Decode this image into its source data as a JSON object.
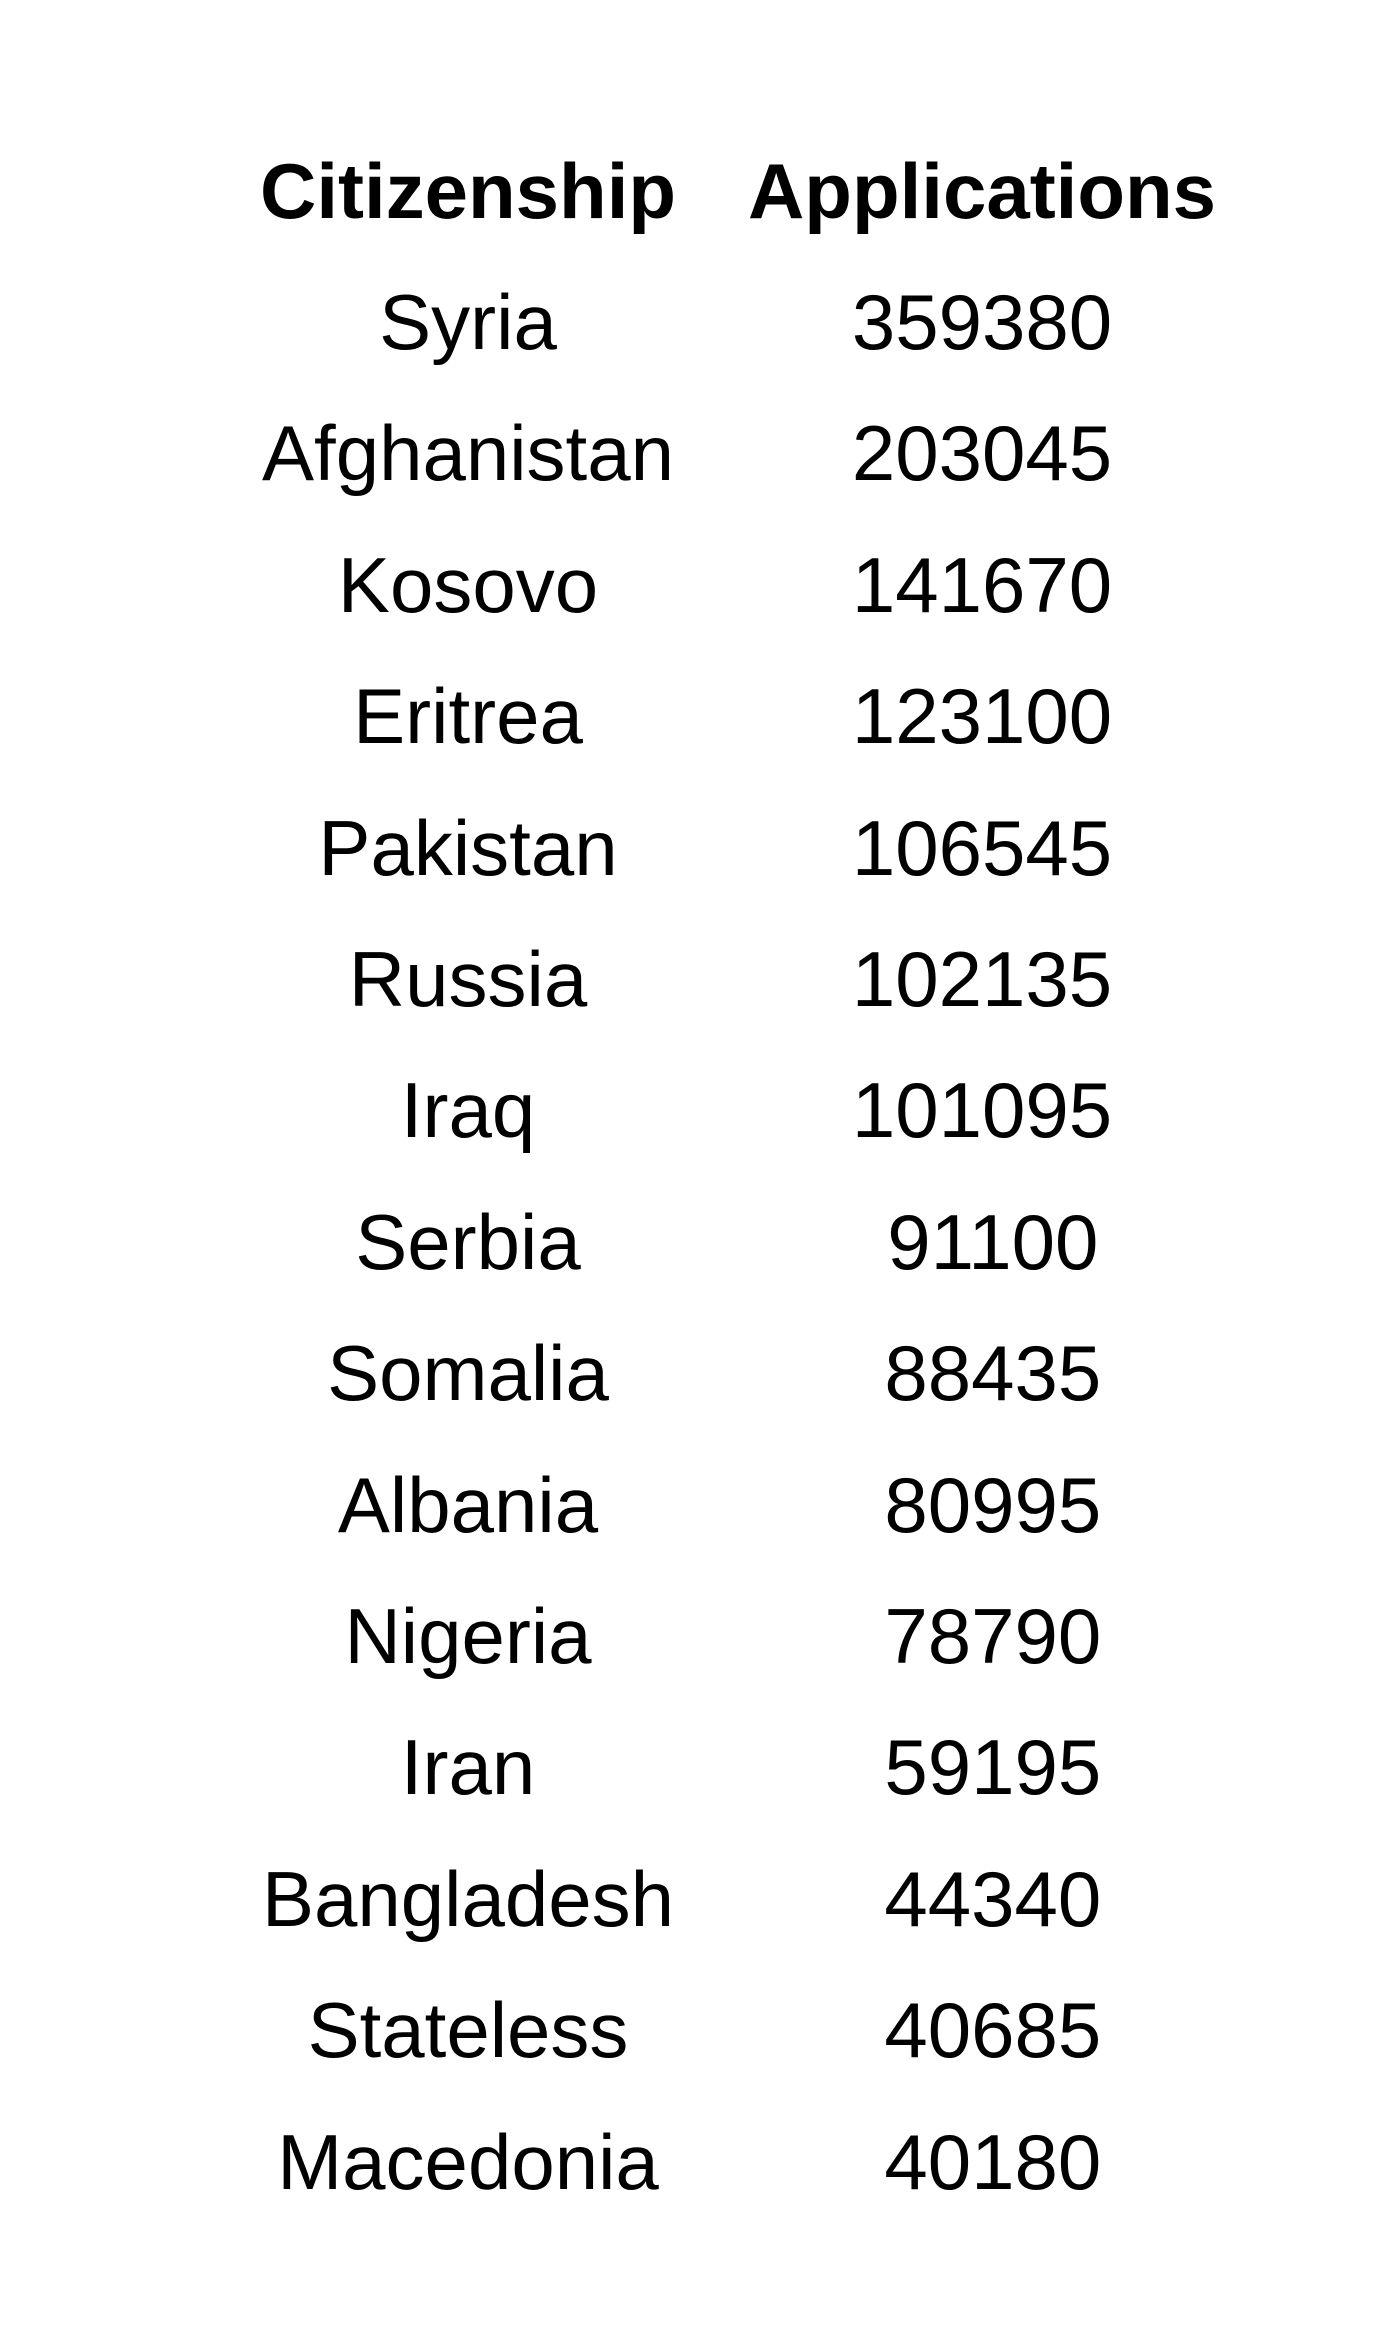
{
  "chart_data": {
    "type": "table",
    "columns": [
      "Citizenship",
      "Applications"
    ],
    "rows": [
      [
        "Syria",
        "359380"
      ],
      [
        "Afghanistan",
        "203045"
      ],
      [
        "Kosovo",
        "141670"
      ],
      [
        "Eritrea",
        "123100"
      ],
      [
        "Pakistan",
        "106545"
      ],
      [
        "Russia",
        "102135"
      ],
      [
        "Iraq",
        "101095"
      ],
      [
        "Serbia",
        " 91100"
      ],
      [
        "Somalia",
        " 88435"
      ],
      [
        "Albania",
        " 80995"
      ],
      [
        "Nigeria",
        " 78790"
      ],
      [
        "Iran",
        " 59195"
      ],
      [
        "Bangladesh",
        " 44340"
      ],
      [
        "Stateless",
        " 40685"
      ],
      [
        "Macedonia",
        " 40180"
      ]
    ]
  }
}
